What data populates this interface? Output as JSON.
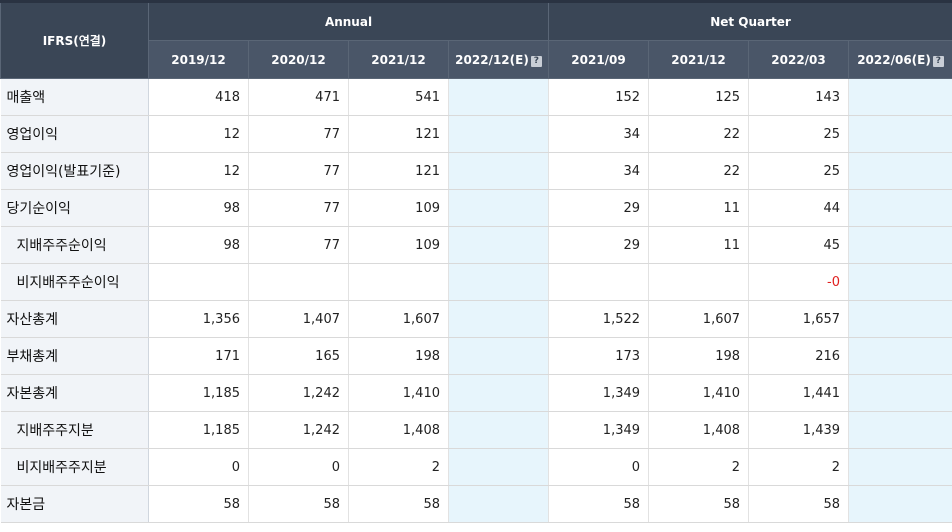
{
  "header": {
    "corner": "IFRS(연결)",
    "annual": "Annual",
    "net_quarter": "Net Quarter",
    "periods": [
      "2019/12",
      "2020/12",
      "2021/12",
      "2022/12(E)",
      "2021/09",
      "2021/12",
      "2022/03",
      "2022/06(E)"
    ],
    "info_icon": "?"
  },
  "rows": [
    {
      "label": "매출액",
      "values": [
        "418",
        "471",
        "541",
        "",
        "152",
        "125",
        "143",
        ""
      ]
    },
    {
      "label": "영업이익",
      "values": [
        "12",
        "77",
        "121",
        "",
        "34",
        "22",
        "25",
        ""
      ]
    },
    {
      "label": "영업이익(발표기준)",
      "values": [
        "12",
        "77",
        "121",
        "",
        "34",
        "22",
        "25",
        ""
      ]
    },
    {
      "label": "당기순이익",
      "values": [
        "98",
        "77",
        "109",
        "",
        "29",
        "11",
        "44",
        ""
      ]
    },
    {
      "label": "지배주주순이익",
      "values": [
        "98",
        "77",
        "109",
        "",
        "29",
        "11",
        "45",
        ""
      ]
    },
    {
      "label": "비지배주주순이익",
      "values": [
        "",
        "",
        "",
        "",
        "",
        "",
        "-0",
        ""
      ]
    },
    {
      "label": "자산총계",
      "values": [
        "1,356",
        "1,407",
        "1,607",
        "",
        "1,522",
        "1,607",
        "1,657",
        ""
      ]
    },
    {
      "label": "부채총계",
      "values": [
        "171",
        "165",
        "198",
        "",
        "173",
        "198",
        "216",
        ""
      ]
    },
    {
      "label": "자본총계",
      "values": [
        "1,185",
        "1,242",
        "1,410",
        "",
        "1,349",
        "1,410",
        "1,441",
        ""
      ]
    },
    {
      "label": "지배주주지분",
      "values": [
        "1,185",
        "1,242",
        "1,408",
        "",
        "1,349",
        "1,408",
        "1,439",
        ""
      ]
    },
    {
      "label": "비지배주주지분",
      "values": [
        "0",
        "0",
        "2",
        "",
        "0",
        "2",
        "2",
        ""
      ]
    },
    {
      "label": "자본금",
      "values": [
        "58",
        "58",
        "58",
        "",
        "58",
        "58",
        "58",
        ""
      ]
    }
  ],
  "colors": {
    "header_bg": "#3a4656",
    "label_bg": "#f1f4f8",
    "estimate_bg": "#e7f5fc",
    "negative": "#e0201f"
  }
}
